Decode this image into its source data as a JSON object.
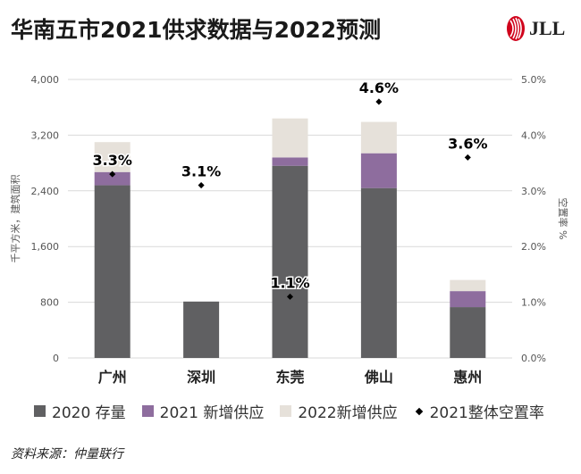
{
  "title": "华南五市2021供求数据与2022预测",
  "logo": {
    "text": "JLL",
    "icon": "jll-flame-logo"
  },
  "source": "资料来源：仲量联行",
  "colors": {
    "stock2020": "#606062",
    "new2021": "#8e6d9e",
    "new2022": "#e6e1da",
    "vacancy": "#000000"
  },
  "chart_data": {
    "type": "bar",
    "stacked": true,
    "categories": [
      "广州",
      "深圳",
      "东莞",
      "佛山",
      "惠州"
    ],
    "series": [
      {
        "name": "2020 存量",
        "values": [
          2480,
          810,
          2760,
          2440,
          730
        ]
      },
      {
        "name": "2021 新增供应",
        "values": [
          190,
          0,
          120,
          500,
          230
        ]
      },
      {
        "name": "2022新增供应",
        "values": [
          430,
          0,
          560,
          450,
          160
        ]
      }
    ],
    "line_series": {
      "name": "2021整体空置率",
      "values": [
        3.3,
        3.1,
        1.1,
        4.6,
        3.6
      ],
      "labels": [
        "3.3%",
        "3.1%",
        "1.1%",
        "4.6%",
        "3.6%"
      ]
    },
    "ylabel": "千平方米，建筑面积",
    "y2label": "空置率 %",
    "ylim": [
      0,
      4000
    ],
    "y2lim": [
      0,
      5
    ],
    "yticks": [
      0,
      800,
      1600,
      2400,
      3200,
      4000
    ],
    "ytick_labels": [
      "0",
      "800",
      "1,600",
      "2,400",
      "3,200",
      "4,000"
    ],
    "y2ticks": [
      0,
      1,
      2,
      3,
      4,
      5
    ],
    "y2tick_labels": [
      "0.0%",
      "1.0%",
      "2.0%",
      "3.0%",
      "4.0%",
      "5.0%"
    ],
    "grid": true,
    "legend_position": "bottom"
  }
}
